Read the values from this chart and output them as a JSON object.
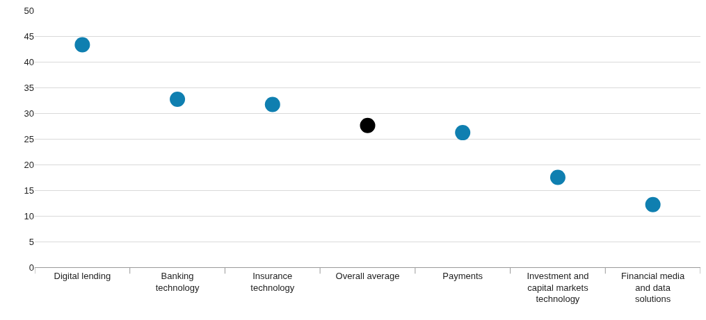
{
  "chart_data": {
    "type": "scatter",
    "categories": [
      "Digital lending",
      "Banking\ntechnology",
      "Insurance\ntechnology",
      "Overall average",
      "Payments",
      "Investment and\ncapital markets\ntechnology",
      "Financial media\nand data\nsolutions"
    ],
    "values": [
      43.3,
      32.7,
      31.7,
      27.6,
      26.2,
      17.5,
      12.2
    ],
    "colors": [
      "#0f7fb0",
      "#0f7fb0",
      "#0f7fb0",
      "#000000",
      "#0f7fb0",
      "#0f7fb0",
      "#0f7fb0"
    ],
    "ylim": [
      0,
      50
    ],
    "yticks": [
      0,
      5,
      10,
      15,
      20,
      25,
      30,
      35,
      40,
      45,
      50
    ],
    "grid": "y",
    "marker": "circle"
  }
}
